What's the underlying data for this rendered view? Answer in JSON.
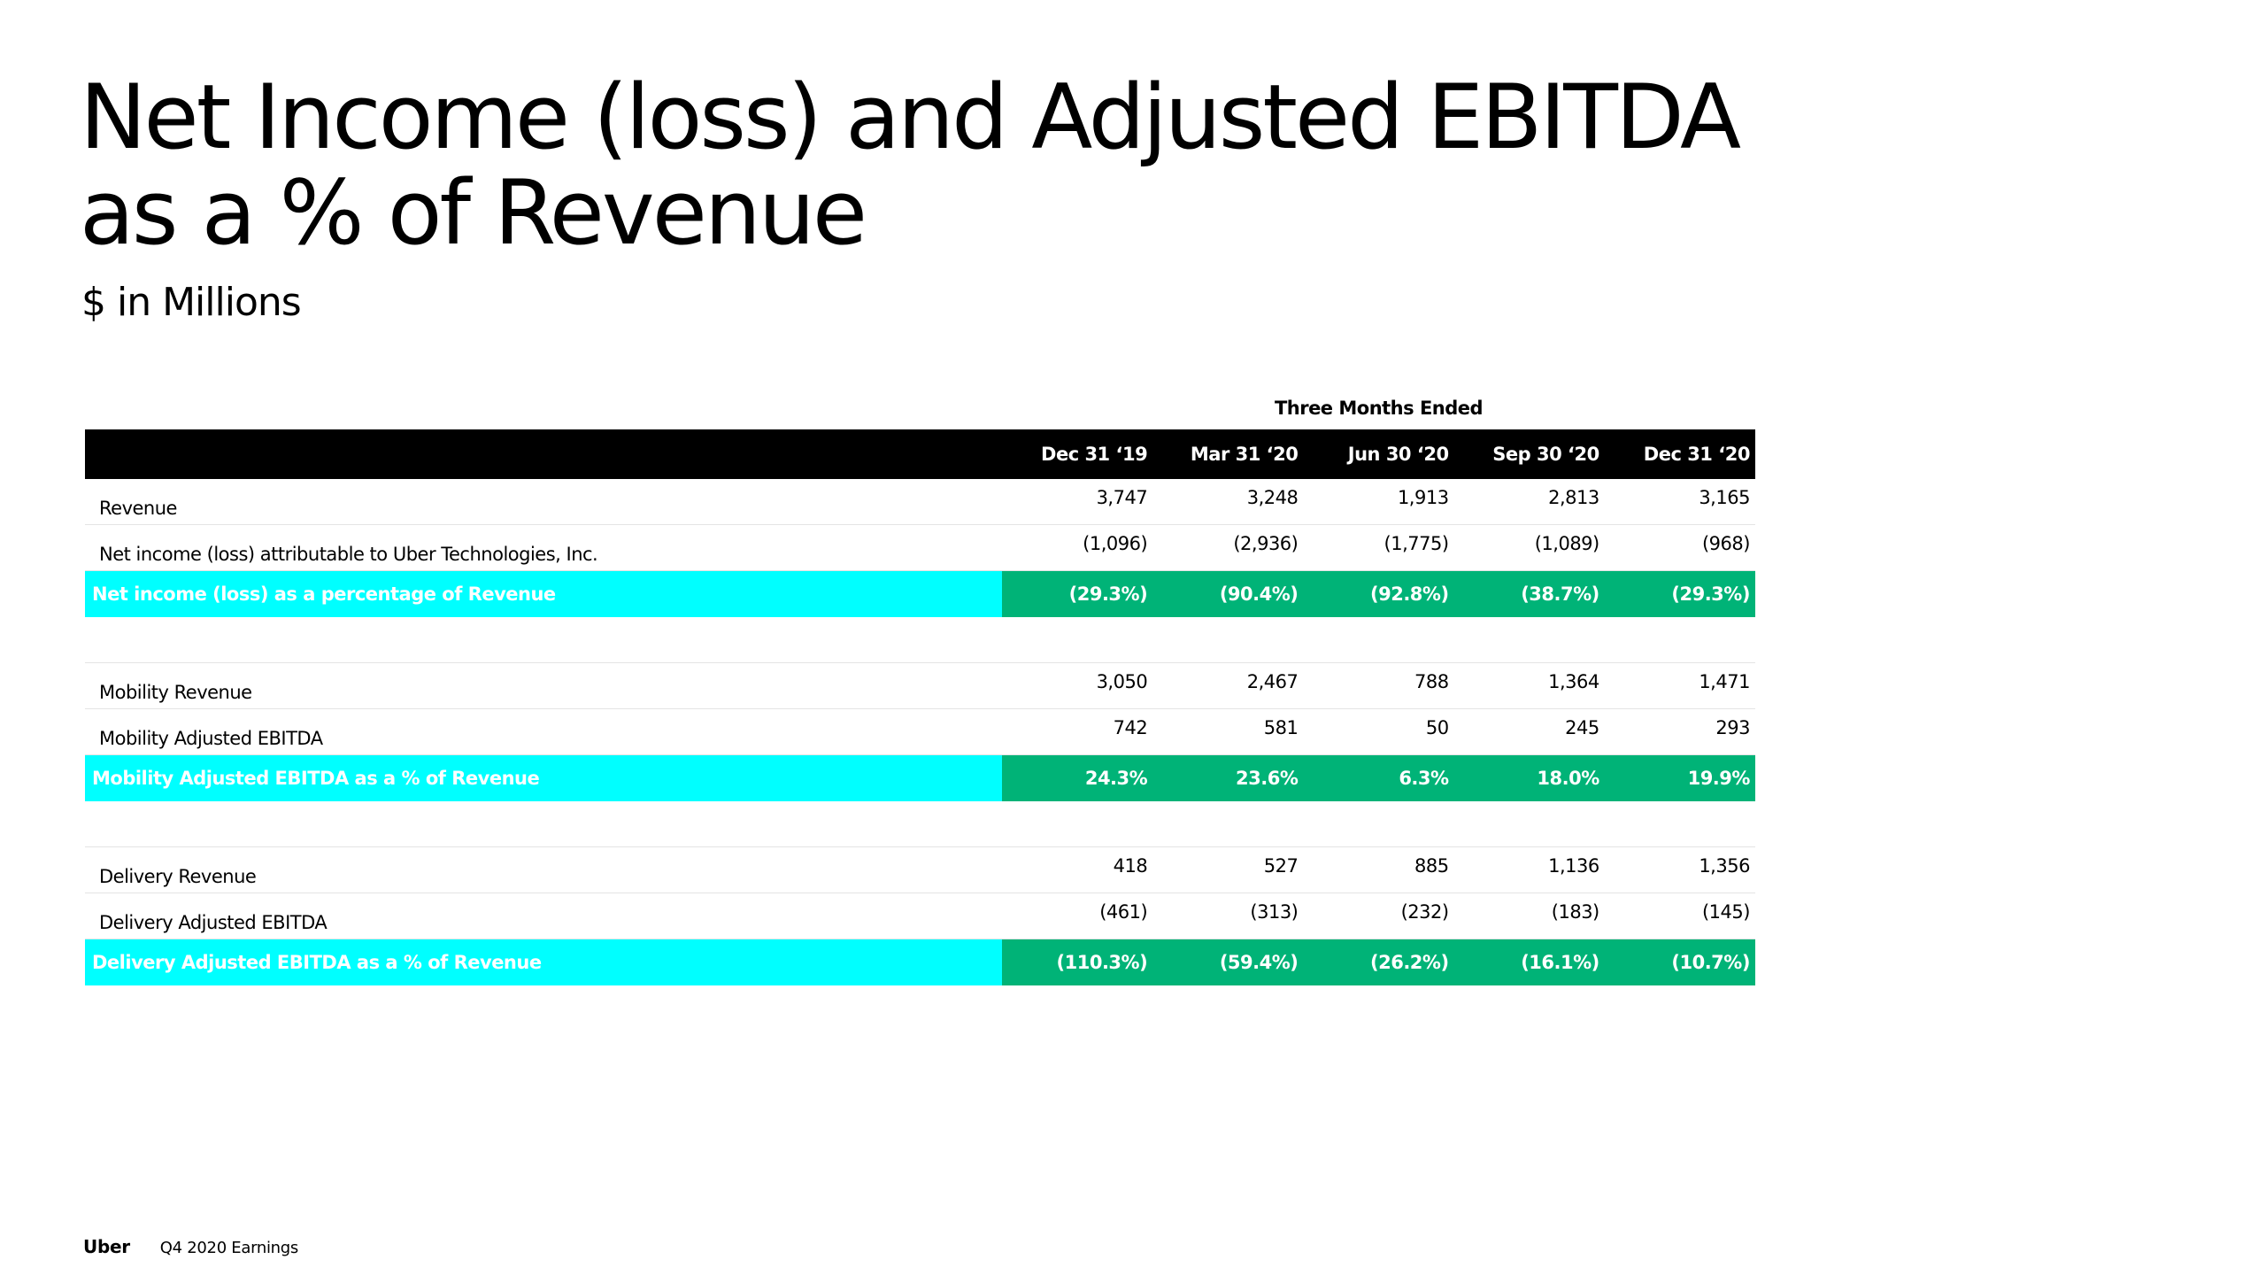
{
  "title_line1": "Net Income (loss) and Adjusted EBITDA",
  "title_line2": "as a % of Revenue",
  "subtitle": "$ in Millions",
  "period_label": "Three Months Ended",
  "columns": [
    "Dec 31 ‘19",
    "Mar 31 ‘20",
    "Jun 30 ‘20",
    "Sep 30 ‘20",
    "Dec 31 ‘20"
  ],
  "rows": [
    {
      "label": "Revenue",
      "values": [
        "3,747",
        "3,248",
        "1,913",
        "2,813",
        "3,165"
      ]
    },
    {
      "label": "Net income (loss) attributable to Uber Technologies, Inc.",
      "values": [
        "(1,096)",
        "(2,936)",
        "(1,775)",
        "(1,089)",
        "(968)"
      ]
    },
    {
      "label": "Net income (loss) as a percentage of Revenue",
      "values": [
        "(29.3%)",
        "(90.4%)",
        "(92.8%)",
        "(38.7%)",
        "(29.3%)"
      ]
    },
    {
      "label": "Mobility Revenue",
      "values": [
        "3,050",
        "2,467",
        "788",
        "1,364",
        "1,471"
      ]
    },
    {
      "label": "Mobility Adjusted EBITDA",
      "values": [
        "742",
        "581",
        "50",
        "245",
        "293"
      ]
    },
    {
      "label": "Mobility Adjusted EBITDA as a % of Revenue",
      "values": [
        "24.3%",
        "23.6%",
        "6.3%",
        "18.0%",
        "19.9%"
      ]
    },
    {
      "label": "Delivery Revenue",
      "values": [
        "418",
        "527",
        "885",
        "1,136",
        "1,356"
      ]
    },
    {
      "label": "Delivery Adjusted EBITDA",
      "values": [
        "(461)",
        "(313)",
        "(232)",
        "(183)",
        "(145)"
      ]
    },
    {
      "label": "Delivery Adjusted EBITDA as a % of Revenue",
      "values": [
        "(110.3%)",
        "(59.4%)",
        "(26.2%)",
        "(16.1%)",
        "(10.7%)"
      ]
    }
  ],
  "footer": {
    "brand": "Uber",
    "text": "Q4 2020 Earnings"
  },
  "colors": {
    "header_bg": "#000000",
    "highlight_label_bg": "#00ffff",
    "highlight_value_bg": "#00b377"
  }
}
